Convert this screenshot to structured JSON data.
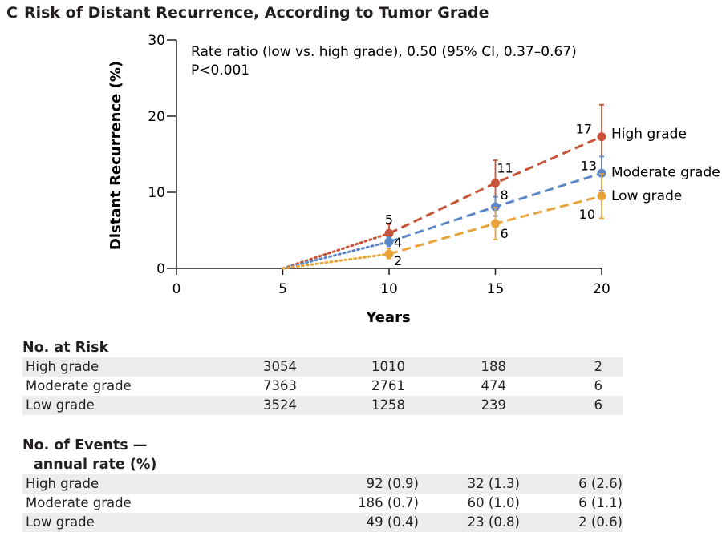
{
  "panel": {
    "letter": "C",
    "title": "Risk of Distant Recurrence, According to Tumor Grade"
  },
  "colors": {
    "high": "#c8553a",
    "moderate": "#5b87c7",
    "low": "#e8a43a",
    "axis": "#231f20",
    "shade": "#ececec"
  },
  "chart_data": {
    "type": "line",
    "title": "Risk of Distant Recurrence, According to Tumor Grade",
    "xlabel": "Years",
    "ylabel": "Distant Recurrence (%)",
    "xlim": [
      0,
      20
    ],
    "ylim": [
      0,
      30
    ],
    "xticks": [
      0,
      5,
      10,
      15,
      20
    ],
    "yticks": [
      0,
      10,
      20,
      30
    ],
    "annotation_lines": [
      "Rate ratio (low vs. high grade), 0.50 (95% CI, 0.37–0.67)",
      "P<0.001"
    ],
    "series": [
      {
        "name": "High grade",
        "key": "high",
        "x": [
          5,
          10,
          15,
          20
        ],
        "y": [
          0,
          4.6,
          11.2,
          17.3
        ],
        "ci_low": [
          null,
          3.4,
          8.5,
          12.8
        ],
        "ci_high": [
          null,
          5.8,
          14.2,
          21.5
        ],
        "labels": [
          null,
          "5",
          "11",
          "17"
        ]
      },
      {
        "name": "Moderate grade",
        "key": "moderate",
        "x": [
          5,
          10,
          15,
          20
        ],
        "y": [
          0,
          3.5,
          8.1,
          12.5
        ],
        "ci_low": [
          null,
          2.9,
          6.9,
          10.2
        ],
        "ci_high": [
          null,
          4.1,
          9.4,
          14.7
        ],
        "labels": [
          null,
          "4",
          "8",
          "13"
        ]
      },
      {
        "name": "Low grade",
        "key": "low",
        "x": [
          5,
          10,
          15,
          20
        ],
        "y": [
          0,
          1.9,
          5.9,
          9.5
        ],
        "ci_low": [
          null,
          1.3,
          3.8,
          6.6
        ],
        "ci_high": [
          null,
          2.6,
          8.0,
          12.4
        ],
        "labels": [
          null,
          "2",
          "6",
          "10"
        ]
      }
    ]
  },
  "risk_table": {
    "heading": "No. at Risk",
    "rows": [
      {
        "label": "High grade",
        "values": [
          "3054",
          "1010",
          "188",
          "2"
        ]
      },
      {
        "label": "Moderate grade",
        "values": [
          "7363",
          "2761",
          "474",
          "6"
        ]
      },
      {
        "label": "Low grade",
        "values": [
          "3524",
          "1258",
          "239",
          "6"
        ]
      }
    ]
  },
  "events_table": {
    "heading_line1": "No. of Events —",
    "heading_line2": "annual rate (%)",
    "rows": [
      {
        "label": "High grade",
        "values": [
          "92 (0.9)",
          "32 (1.3)",
          "6 (2.6)"
        ]
      },
      {
        "label": "Moderate grade",
        "values": [
          "186 (0.7)",
          "60 (1.0)",
          "6 (1.1)"
        ]
      },
      {
        "label": "Low grade",
        "values": [
          "49 (0.4)",
          "23 (0.8)",
          "2 (0.6)"
        ]
      }
    ]
  }
}
